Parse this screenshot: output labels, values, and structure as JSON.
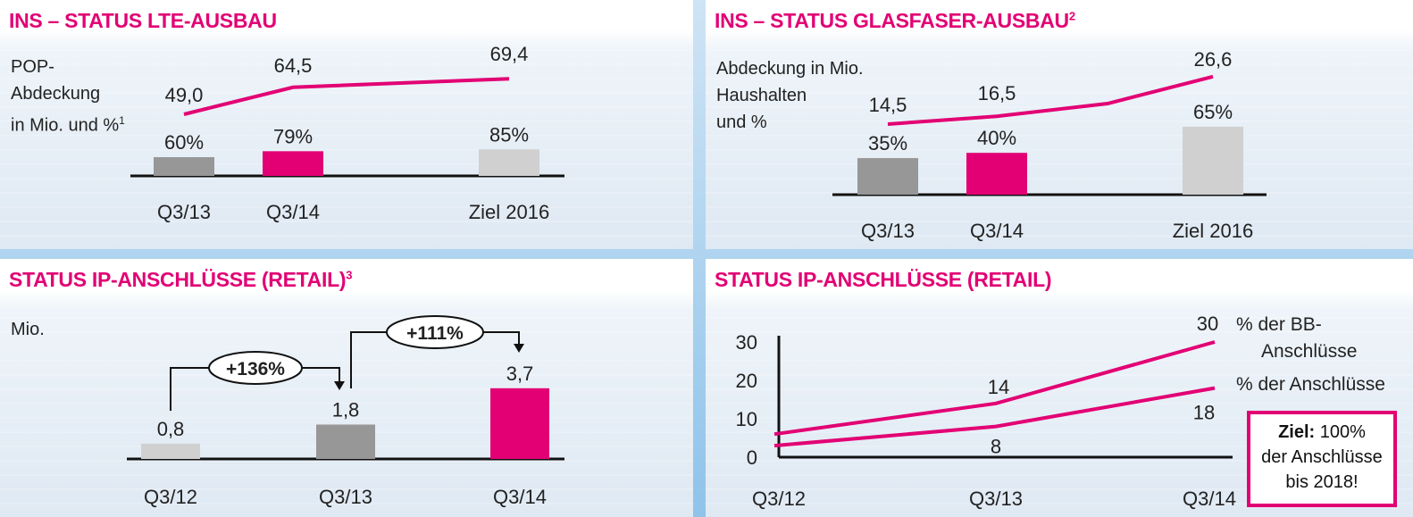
{
  "colors": {
    "magenta": "#e20074",
    "dark_gray": "#979797",
    "light_gray": "#d0d0d0"
  },
  "panels": {
    "lte": {
      "title": "INS – STATUS LTE-AUSBAU",
      "title_sup": "",
      "ylabel": "POP-\nAbdeckung\nin Mio. und %",
      "ylabel_sup": "1"
    },
    "fiber": {
      "title": "INS – STATUS GLASFASER-AUSBAU",
      "title_sup": "2",
      "ylabel": "Abdeckung in Mio.\nHaushalten\nund %"
    },
    "ip3": {
      "title": "STATUS IP-ANSCHLÜSSE (RETAIL)",
      "title_sup": "3",
      "ylabel": "Mio."
    },
    "ip": {
      "title": "STATUS IP-ANSCHLÜSSE (RETAIL)",
      "goal_bold": "Ziel:",
      "goal_rest": "100%",
      "goal_line2": "der Anschlüsse",
      "goal_line3": "bis 2018!"
    }
  },
  "chart_data": [
    {
      "type": "bar",
      "title": "INS – STATUS LTE-AUSBAU",
      "categories": [
        "Q3/13",
        "Q3/14",
        "Ziel 2016"
      ],
      "series": [
        {
          "name": "",
          "values": [
            60,
            79,
            85
          ],
          "labels": [
            "60%",
            "79%",
            "85%"
          ]
        },
        {
          "name": "",
          "values": [
            49.0,
            64.5,
            69.4
          ],
          "labels": [
            "49,0",
            "64,5",
            "69,4"
          ],
          "render": "line"
        }
      ],
      "ylabel": "POP-Abdeckung in Mio. und %"
    },
    {
      "type": "bar",
      "title": "INS – STATUS GLASFASER-AUSBAU",
      "categories": [
        "Q3/13",
        "Q3/14",
        "Ziel 2016"
      ],
      "series": [
        {
          "name": "",
          "values": [
            35,
            40,
            65
          ],
          "labels": [
            "35%",
            "40%",
            "65%"
          ]
        },
        {
          "name": "",
          "values": [
            14.5,
            16.5,
            26.6
          ],
          "labels": [
            "14,5",
            "16,5",
            "26,6"
          ],
          "render": "line"
        }
      ],
      "ylabel": "Abdeckung in Mio. Haushalten und %"
    },
    {
      "type": "bar",
      "title": "STATUS IP-ANSCHLÜSSE (RETAIL)",
      "categories": [
        "Q3/12",
        "Q3/13",
        "Q3/14"
      ],
      "values": [
        0.8,
        1.8,
        3.7
      ],
      "labels": [
        "0,8",
        "1,8",
        "3,7"
      ],
      "growth": [
        "+136%",
        "+111%"
      ],
      "ylabel": "Mio."
    },
    {
      "type": "line",
      "title": "STATUS IP-ANSCHLÜSSE (RETAIL)",
      "categories": [
        "Q3/12",
        "Q3/13",
        "Q3/14"
      ],
      "yticks": [
        "30",
        "20",
        "10",
        "0"
      ],
      "ylim": [
        0,
        30
      ],
      "series": [
        {
          "name": "% der BB-Anschlüsse",
          "values": [
            6,
            14,
            30
          ],
          "labels": [
            "",
            "14",
            "30"
          ]
        },
        {
          "name": "% der Anschlüsse",
          "values": [
            3,
            8,
            18
          ],
          "labels": [
            "",
            "8",
            "18"
          ]
        }
      ]
    }
  ]
}
